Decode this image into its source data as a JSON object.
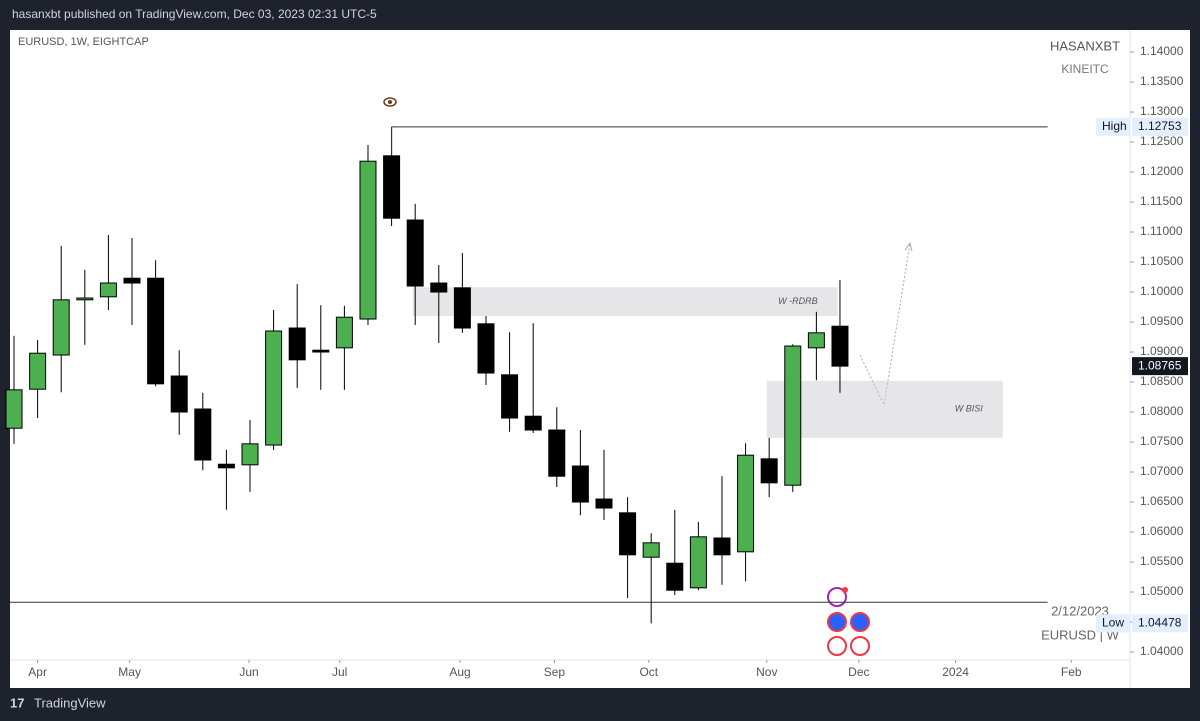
{
  "header": {
    "title": "hasanxbt published on TradingView.com, Dec 03, 2023 02:31 UTC-5",
    "brand": "TradingView"
  },
  "chart_data": {
    "type": "candlestick",
    "title": "EURUSD, 1W, EIGHTCAP",
    "watermark": [
      "HASANXBT",
      "KINEITC"
    ],
    "corner_text": [
      "2/12/2023",
      "EURUSD | W"
    ],
    "up_color": "#4caf50",
    "down_color": "#000000",
    "x": [
      0,
      1,
      2,
      3,
      4,
      5,
      6,
      7,
      8,
      9,
      10,
      11,
      12,
      13,
      14,
      15,
      16,
      17,
      18,
      19,
      20,
      21,
      22,
      23,
      24,
      25,
      26,
      27,
      28,
      29,
      30,
      31,
      32,
      33,
      34,
      35
    ],
    "series": {
      "open": [
        1.0773,
        1.0838,
        1.0895,
        1.0987,
        1.0992,
        1.1023,
        1.1023,
        1.086,
        1.0805,
        1.0713,
        1.0712,
        1.0745,
        1.094,
        1.0903,
        1.0907,
        1.0955,
        1.1227,
        1.112,
        1.1015,
        1.1007,
        1.0947,
        1.0862,
        1.0793,
        1.077,
        1.071,
        1.0655,
        1.0632,
        1.0558,
        1.0548,
        1.0507,
        1.059,
        1.0567,
        1.0722,
        1.0678,
        1.0907,
        1.0943
      ],
      "high": [
        1.0927,
        1.092,
        1.1077,
        1.1037,
        1.1095,
        1.109,
        1.1053,
        1.0903,
        1.0832,
        1.0737,
        1.0787,
        1.097,
        1.1013,
        1.0978,
        1.0977,
        1.1245,
        1.12753,
        1.1147,
        1.1045,
        1.1065,
        1.096,
        1.0933,
        1.0948,
        1.0808,
        1.077,
        1.0737,
        1.0658,
        1.0598,
        1.0637,
        1.0617,
        1.0693,
        1.0748,
        1.0757,
        1.0913,
        1.0967,
        1.102
      ],
      "low": [
        1.0747,
        1.079,
        1.0833,
        1.0912,
        1.097,
        1.0945,
        1.0843,
        1.0762,
        1.0703,
        1.0637,
        1.0667,
        1.0737,
        1.084,
        1.0837,
        1.0837,
        1.0945,
        1.111,
        1.0945,
        1.0915,
        1.0932,
        1.0845,
        1.0767,
        1.0765,
        1.0675,
        1.0628,
        1.062,
        1.049,
        1.04478,
        1.0495,
        1.0503,
        1.0512,
        1.0518,
        1.0658,
        1.0667,
        1.0853,
        1.0832
      ],
      "close": [
        1.0837,
        1.0898,
        1.0987,
        1.099,
        1.1015,
        1.1015,
        1.0847,
        1.08,
        1.072,
        1.0707,
        1.0747,
        1.0935,
        1.0887,
        1.09,
        1.0958,
        1.1218,
        1.1123,
        1.101,
        1.1,
        1.094,
        1.0865,
        1.079,
        1.077,
        1.0693,
        1.065,
        1.064,
        1.0562,
        1.0582,
        1.0503,
        1.0592,
        1.0562,
        1.0728,
        1.0682,
        1.091,
        1.0932,
        1.08765
      ]
    },
    "xlim": [
      -0.17,
      47.29
    ],
    "xticks": [
      {
        "value": 1,
        "label": "Apr"
      },
      {
        "value": 4.9,
        "label": "May"
      },
      {
        "value": 9.96,
        "label": "Jun"
      },
      {
        "value": 13.8,
        "label": "Jul"
      },
      {
        "value": 18.9,
        "label": "Aug"
      },
      {
        "value": 22.9,
        "label": "Sep"
      },
      {
        "value": 26.9,
        "label": "Oct"
      },
      {
        "value": 31.9,
        "label": "Nov"
      },
      {
        "value": 35.8,
        "label": "Dec"
      },
      {
        "value": 39.9,
        "label": "2024"
      },
      {
        "value": 44.8,
        "label": "Feb"
      }
    ],
    "ylim": [
      1.03867,
      1.14367
    ],
    "yticks": [
      {
        "value": 1.04,
        "label": "1.04000"
      },
      {
        "value": 1.045,
        "label": "1.04500"
      },
      {
        "value": 1.05,
        "label": "1.05000"
      },
      {
        "value": 1.055,
        "label": "1.05500"
      },
      {
        "value": 1.06,
        "label": "1.06000"
      },
      {
        "value": 1.065,
        "label": "1.06500"
      },
      {
        "value": 1.07,
        "label": "1.07000"
      },
      {
        "value": 1.075,
        "label": "1.07500"
      },
      {
        "value": 1.08,
        "label": "1.08000"
      },
      {
        "value": 1.085,
        "label": "1.08500"
      },
      {
        "value": 1.09,
        "label": "1.09000"
      },
      {
        "value": 1.095,
        "label": "1.09500"
      },
      {
        "value": 1.1,
        "label": "1.10000"
      },
      {
        "value": 1.105,
        "label": "1.10500"
      },
      {
        "value": 1.11,
        "label": "1.11000"
      },
      {
        "value": 1.115,
        "label": "1.11500"
      },
      {
        "value": 1.12,
        "label": "1.12000"
      },
      {
        "value": 1.125,
        "label": "1.12500"
      },
      {
        "value": 1.13,
        "label": "1.13000"
      },
      {
        "value": 1.135,
        "label": "1.13500"
      },
      {
        "value": 1.14,
        "label": "1.14000"
      }
    ],
    "zones": [
      {
        "label": "W -RDRB",
        "top": 1.1008,
        "bottom": 1.096,
        "x0": 16.9,
        "x1": 34.9
      },
      {
        "label": "W BISI",
        "top": 1.0852,
        "bottom": 1.0757,
        "x0": 31.9,
        "x1": 41.9
      }
    ],
    "levels": [
      {
        "value": 1.12753,
        "x0": 16,
        "x1": 43.8
      },
      {
        "value": 1.0483,
        "x0": -0.17,
        "x1": 43.8
      }
    ],
    "price_labels": [
      {
        "name": "High",
        "value": 1.12753
      },
      {
        "name": "Low",
        "value": 1.04478
      },
      {
        "value": 1.08765
      }
    ]
  }
}
